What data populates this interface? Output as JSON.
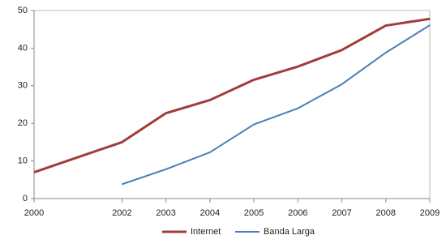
{
  "chart_data": {
    "type": "line",
    "x": [
      2000,
      2001,
      2002,
      2003,
      2004,
      2005,
      2006,
      2007,
      2008,
      2009
    ],
    "series": [
      {
        "name": "Internet",
        "color": "#a33b3b",
        "values": [
          7,
          11,
          15,
          22.7,
          26.2,
          31.6,
          35.1,
          39.5,
          46,
          47.8
        ]
      },
      {
        "name": "Banda Larga",
        "color": "#4a7ebb",
        "values": [
          null,
          null,
          3.8,
          7.8,
          12.3,
          19.7,
          24,
          30.4,
          38.8,
          46.1
        ]
      }
    ],
    "xlim": [
      2000,
      2009
    ],
    "xticks": [
      2000,
      2002,
      2003,
      2004,
      2005,
      2006,
      2007,
      2008,
      2009
    ],
    "ylim": [
      0,
      50
    ],
    "yticks": [
      0,
      10,
      20,
      30,
      40,
      50
    ],
    "legend": "bottom"
  }
}
